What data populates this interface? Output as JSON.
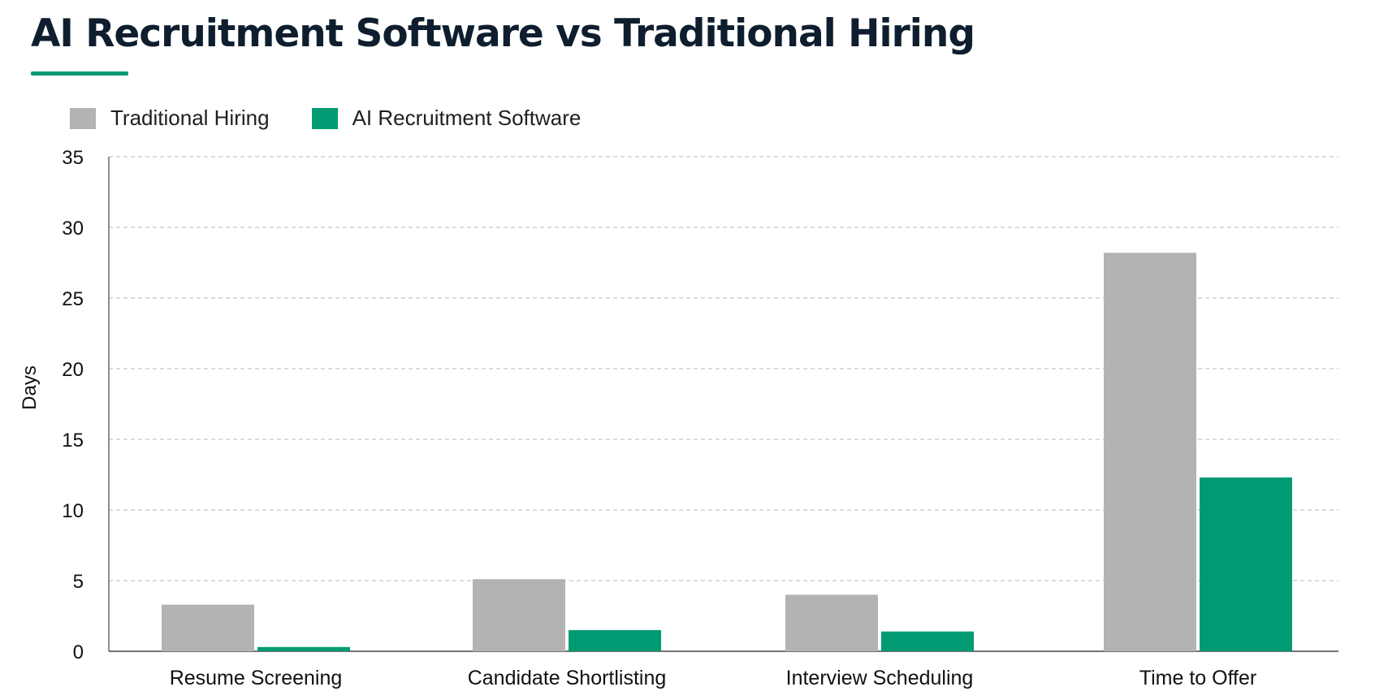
{
  "header": {
    "title": "AI Recruitment Software vs Traditional Hiring"
  },
  "colors": {
    "accent": "#009b72",
    "traditional": "#b3b3b3",
    "ai": "#009b72",
    "grid": "#c8c8c8",
    "axis": "#444444"
  },
  "chart_data": {
    "type": "bar",
    "title": "AI Recruitment Software vs Traditional Hiring",
    "xlabel": "",
    "ylabel": "Days",
    "ylim": [
      0,
      35
    ],
    "yticks": [
      0,
      5,
      10,
      15,
      20,
      25,
      30,
      35
    ],
    "grid": true,
    "legend_position": "top-left",
    "categories": [
      "Resume Screening",
      "Candidate Shortlisting",
      "Interview Scheduling",
      "Time to Offer"
    ],
    "series": [
      {
        "name": "Traditional Hiring",
        "color": "#b3b3b3",
        "values": [
          3.3,
          5.1,
          4.0,
          28.2
        ]
      },
      {
        "name": "AI Recruitment Software",
        "color": "#009b72",
        "values": [
          0.3,
          1.5,
          1.4,
          12.3
        ]
      }
    ]
  }
}
